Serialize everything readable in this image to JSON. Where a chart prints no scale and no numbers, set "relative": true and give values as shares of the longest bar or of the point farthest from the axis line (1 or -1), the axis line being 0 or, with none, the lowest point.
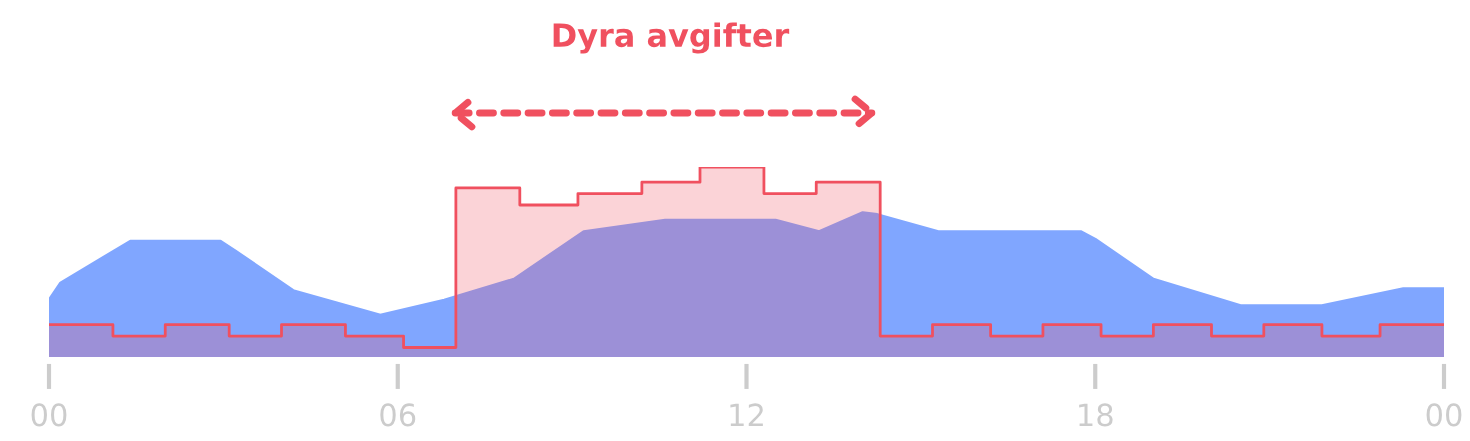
{
  "chart_data": {
    "type": "area",
    "relative": true,
    "title": "Dyra avgifter",
    "xlim": [
      0,
      24
    ],
    "xticks": [
      {
        "value": 0,
        "label": "00"
      },
      {
        "value": 6,
        "label": "06"
      },
      {
        "value": 12,
        "label": "12"
      },
      {
        "value": 18,
        "label": "18"
      },
      {
        "value": 24,
        "label": "00"
      }
    ],
    "series": [
      {
        "color": "#80a6ff",
        "x": [
          0,
          0.2,
          1.4,
          2.95,
          3.2,
          4.2,
          5.7,
          6.8,
          8.0,
          9.2,
          10.6,
          12.5,
          13.25,
          14.0,
          14.25,
          15.3,
          17.75,
          18.0,
          19.0,
          20.5,
          21.9,
          23.3,
          24
        ],
        "values": [
          0.3,
          0.39,
          0.61,
          0.61,
          0.56,
          0.35,
          0.22,
          0.3,
          0.41,
          0.66,
          0.72,
          0.72,
          0.66,
          0.76,
          0.75,
          0.66,
          0.66,
          0.62,
          0.41,
          0.27,
          0.27,
          0.36,
          0.36
        ]
      },
      {
        "color": "#f0505f",
        "x": [
          0,
          1.1,
          1.1,
          2.0,
          2.0,
          3.1,
          3.1,
          4.0,
          4.0,
          5.1,
          5.1,
          6.1,
          6.1,
          7.0,
          7.0,
          8.1,
          8.1,
          9.1,
          9.1,
          10.2,
          10.2,
          11.2,
          11.2,
          12.3,
          12.3,
          13.2,
          13.2,
          14.3,
          14.3,
          15.2,
          15.2,
          16.2,
          16.2,
          17.1,
          17.1,
          18.1,
          18.1,
          19.0,
          19.0,
          20.0,
          20.0,
          20.9,
          20.9,
          21.9,
          21.9,
          22.9,
          22.9,
          24
        ],
        "values": [
          0.17,
          0.17,
          0.11,
          0.11,
          0.17,
          0.17,
          0.11,
          0.11,
          0.17,
          0.17,
          0.11,
          0.11,
          0.05,
          0.05,
          0.89,
          0.89,
          0.8,
          0.8,
          0.86,
          0.86,
          0.92,
          0.92,
          1.0,
          1.0,
          0.86,
          0.86,
          0.92,
          0.92,
          0.11,
          0.11,
          0.17,
          0.17,
          0.11,
          0.11,
          0.17,
          0.17,
          0.11,
          0.11,
          0.17,
          0.17,
          0.11,
          0.11,
          0.17,
          0.17,
          0.11,
          0.11,
          0.17,
          0.17
        ]
      }
    ]
  }
}
